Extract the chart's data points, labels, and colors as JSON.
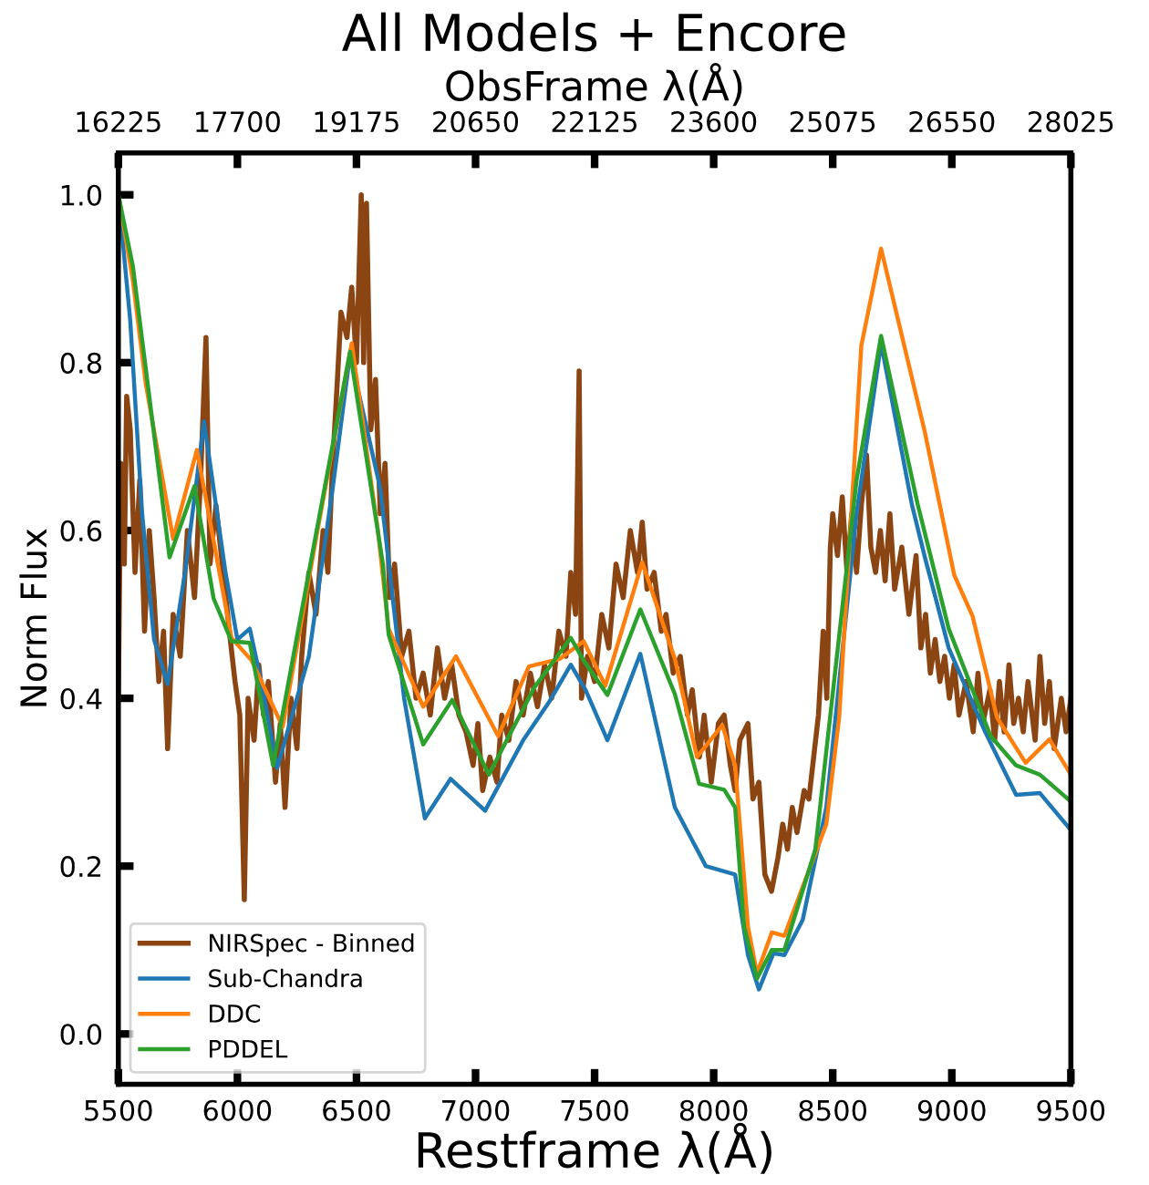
{
  "chart_data": {
    "type": "line",
    "title": "All Models + Encore",
    "xlabel": "Restframe λ(Å)",
    "ylabel": "Norm Flux",
    "x2label": "ObsFrame λ(Å)",
    "xlim": [
      5500,
      9500
    ],
    "xticks": [
      5500,
      6000,
      6500,
      7000,
      7500,
      8000,
      8500,
      9000,
      9500
    ],
    "x2lim": [
      16225,
      28025
    ],
    "x2ticks": [
      16225,
      17700,
      19175,
      20650,
      22125,
      23600,
      25075,
      26550,
      28025
    ],
    "ylim": [
      -0.06,
      1.05
    ],
    "yticks": [
      {
        "value": 0.0,
        "label": "0.0"
      },
      0.2,
      0.4,
      0.6,
      0.8,
      {
        "value": 1.0,
        "label": "1.0"
      }
    ],
    "grid": false,
    "legend": "bottom left",
    "marker": "none",
    "line_style": "solid",
    "series": [
      {
        "name": "NIRSpec - Binned",
        "color": "#8b4513",
        "x": [
          5500,
          5510,
          5525,
          5535,
          5550,
          5570,
          5590,
          5610,
          5630,
          5650,
          5670,
          5690,
          5707,
          5730,
          5760,
          5790,
          5820,
          5845,
          5868,
          5885,
          5910,
          5940,
          5970,
          5990,
          6010,
          6029,
          6045,
          6070,
          6090,
          6110,
          6130,
          6160,
          6180,
          6200,
          6225,
          6250,
          6270,
          6300,
          6330,
          6360,
          6380,
          6400,
          6420,
          6435,
          6460,
          6480,
          6500,
          6520,
          6530,
          6542,
          6560,
          6580,
          6600,
          6620,
          6640,
          6660,
          6690,
          6720,
          6750,
          6780,
          6810,
          6840,
          6870,
          6900,
          6930,
          6960,
          6990,
          7010,
          7030,
          7060,
          7090,
          7110,
          7140,
          7170,
          7200,
          7230,
          7260,
          7290,
          7320,
          7350,
          7380,
          7400,
          7420,
          7435,
          7445,
          7470,
          7500,
          7530,
          7560,
          7590,
          7620,
          7650,
          7680,
          7700,
          7720,
          7750,
          7780,
          7800,
          7830,
          7860,
          7890,
          7910,
          7940,
          7960,
          7990,
          8020,
          8044,
          8070,
          8090,
          8110,
          8144,
          8165,
          8190,
          8215,
          8243,
          8270,
          8290,
          8310,
          8330,
          8350,
          8380,
          8400,
          8420,
          8440,
          8460,
          8475,
          8490,
          8500,
          8520,
          8540,
          8560,
          8580,
          8600,
          8620,
          8642,
          8660,
          8680,
          8700,
          8720,
          8740,
          8760,
          8790,
          8820,
          8850,
          8870,
          8890,
          8910,
          8930,
          8950,
          8970,
          8990,
          9010,
          9030,
          9060,
          9090,
          9110,
          9130,
          9160,
          9180,
          9200,
          9220,
          9240,
          9260,
          9280,
          9300,
          9320,
          9350,
          9370,
          9390,
          9410,
          9430,
          9460,
          9480,
          9500
        ],
        "values": [
          0.4,
          0.68,
          0.56,
          0.76,
          0.72,
          0.55,
          0.66,
          0.48,
          0.6,
          0.52,
          0.42,
          0.48,
          0.34,
          0.5,
          0.45,
          0.6,
          0.52,
          0.66,
          0.83,
          0.56,
          0.63,
          0.55,
          0.47,
          0.42,
          0.38,
          0.16,
          0.4,
          0.35,
          0.44,
          0.38,
          0.42,
          0.3,
          0.37,
          0.27,
          0.4,
          0.34,
          0.45,
          0.55,
          0.5,
          0.6,
          0.55,
          0.68,
          0.78,
          0.86,
          0.83,
          0.89,
          0.8,
          1.0,
          0.8,
          0.99,
          0.72,
          0.78,
          0.62,
          0.68,
          0.52,
          0.56,
          0.45,
          0.48,
          0.4,
          0.43,
          0.38,
          0.46,
          0.4,
          0.44,
          0.38,
          0.36,
          0.32,
          0.37,
          0.29,
          0.33,
          0.3,
          0.38,
          0.35,
          0.42,
          0.38,
          0.43,
          0.39,
          0.44,
          0.4,
          0.48,
          0.45,
          0.55,
          0.5,
          0.79,
          0.4,
          0.45,
          0.42,
          0.5,
          0.46,
          0.56,
          0.52,
          0.6,
          0.55,
          0.61,
          0.53,
          0.55,
          0.48,
          0.5,
          0.43,
          0.45,
          0.38,
          0.41,
          0.33,
          0.38,
          0.3,
          0.37,
          0.38,
          0.32,
          0.29,
          0.35,
          0.37,
          0.28,
          0.3,
          0.19,
          0.17,
          0.21,
          0.25,
          0.22,
          0.27,
          0.24,
          0.29,
          0.28,
          0.33,
          0.38,
          0.48,
          0.4,
          0.58,
          0.62,
          0.57,
          0.64,
          0.55,
          0.62,
          0.55,
          0.63,
          0.69,
          0.58,
          0.55,
          0.6,
          0.54,
          0.62,
          0.53,
          0.58,
          0.5,
          0.57,
          0.46,
          0.5,
          0.43,
          0.47,
          0.42,
          0.45,
          0.4,
          0.44,
          0.38,
          0.42,
          0.36,
          0.43,
          0.37,
          0.41,
          0.35,
          0.42,
          0.36,
          0.44,
          0.37,
          0.4,
          0.36,
          0.42,
          0.35,
          0.45,
          0.37,
          0.42,
          0.34,
          0.4,
          0.36,
          0.4
        ]
      },
      {
        "name": "Sub-Chandra",
        "color": "#1f77b4",
        "x": [
          5500,
          5550,
          5600,
          5650,
          5707,
          5780,
          5860,
          5950,
          6000,
          6052,
          6100,
          6167,
          6300,
          6400,
          6473,
          6600,
          6700,
          6787,
          6895,
          7040,
          7200,
          7310,
          7400,
          7462,
          7554,
          7692,
          7837,
          7967,
          8090,
          8144,
          8190,
          8251,
          8297,
          8374,
          8473,
          8600,
          8703,
          8833,
          8887,
          8987,
          9140,
          9270,
          9370,
          9500
        ],
        "values": [
          1.0,
          0.85,
          0.62,
          0.47,
          0.417,
          0.55,
          0.73,
          0.55,
          0.47,
          0.483,
          0.42,
          0.317,
          0.45,
          0.65,
          0.81,
          0.65,
          0.4,
          0.257,
          0.304,
          0.266,
          0.35,
          0.396,
          0.44,
          0.41,
          0.35,
          0.453,
          0.27,
          0.2,
          0.19,
          0.094,
          0.053,
          0.096,
          0.094,
          0.136,
          0.27,
          0.62,
          0.823,
          0.63,
          0.568,
          0.46,
          0.36,
          0.285,
          0.287,
          0.243
        ]
      },
      {
        "name": "DDC",
        "color": "#ff7f0e",
        "x": [
          5500,
          5560,
          5615,
          5730,
          5830,
          5975,
          6060,
          6190,
          6330,
          6480,
          6590,
          6635,
          6780,
          6918,
          7095,
          7224,
          7354,
          7454,
          7545,
          7700,
          7837,
          7930,
          8036,
          8090,
          8144,
          8182,
          8244,
          8297,
          8473,
          8527,
          8620,
          8703,
          8887,
          9010,
          9087,
          9190,
          9310,
          9410,
          9500
        ],
        "values": [
          1.0,
          0.9,
          0.775,
          0.59,
          0.696,
          0.472,
          0.445,
          0.366,
          0.59,
          0.823,
          0.6,
          0.483,
          0.39,
          0.45,
          0.355,
          0.438,
          0.447,
          0.468,
          0.415,
          0.562,
          0.447,
          0.33,
          0.368,
          0.32,
          0.128,
          0.072,
          0.121,
          0.117,
          0.25,
          0.377,
          0.82,
          0.936,
          0.717,
          0.547,
          0.498,
          0.377,
          0.323,
          0.351,
          0.309
        ]
      },
      {
        "name": "PDDEL",
        "color": "#2ca02c",
        "x": [
          5500,
          5561,
          5715,
          5820,
          5900,
          5975,
          6052,
          6150,
          6300,
          6473,
          6611,
          6635,
          6780,
          6902,
          7056,
          7247,
          7400,
          7454,
          7554,
          7692,
          7837,
          7939,
          8044,
          8090,
          8128,
          8182,
          8244,
          8297,
          8427,
          8600,
          8703,
          8856,
          8987,
          9163,
          9270,
          9370,
          9500
        ],
        "values": [
          1.0,
          0.915,
          0.568,
          0.653,
          0.519,
          0.468,
          0.466,
          0.32,
          0.55,
          0.813,
          0.56,
          0.476,
          0.345,
          0.398,
          0.309,
          0.413,
          0.472,
          0.445,
          0.404,
          0.506,
          0.405,
          0.298,
          0.291,
          0.27,
          0.128,
          0.066,
          0.1,
          0.1,
          0.22,
          0.66,
          0.832,
          0.632,
          0.483,
          0.355,
          0.32,
          0.309,
          0.277
        ]
      }
    ]
  }
}
